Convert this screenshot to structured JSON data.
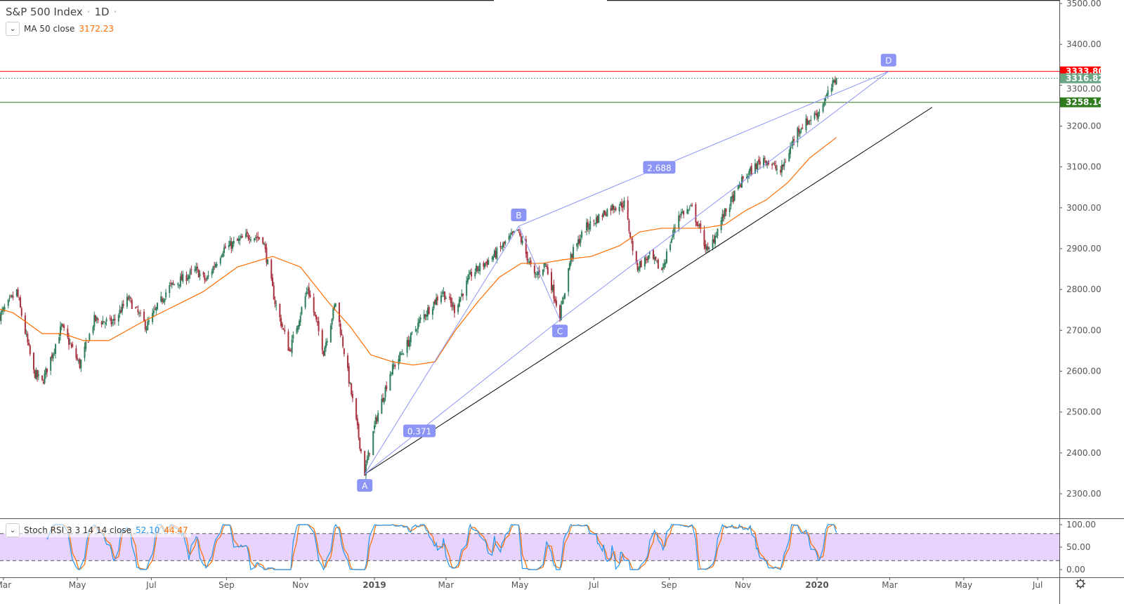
{
  "header": {
    "symbol": "S&P 500 Index",
    "interval": "1D",
    "sep": "·"
  },
  "indicators": {
    "ma": {
      "label": "MA 50 close",
      "value": "3172.23",
      "color": "#ff6d00"
    },
    "stoch": {
      "label": "Stoch RSI 3 3 14 14 close",
      "k_value": "52.10",
      "d_value": "44.47",
      "k_color": "#2196f3",
      "d_color": "#ff6d00"
    }
  },
  "chart_data": {
    "type": "candlestick",
    "title": "S&P 500 Index · 1D",
    "ylim": [
      2250,
      3500
    ],
    "y_ticks": [
      2300,
      2400,
      2500,
      2600,
      2700,
      2800,
      2900,
      3000,
      3100,
      3200,
      3300,
      3400,
      3500
    ],
    "x_ticks": [
      {
        "date": "2018-03-01",
        "label": "Mar"
      },
      {
        "date": "2018-05-01",
        "label": "May"
      },
      {
        "date": "2018-07-01",
        "label": "Jul"
      },
      {
        "date": "2018-09-01",
        "label": "Sep"
      },
      {
        "date": "2018-11-01",
        "label": "Nov"
      },
      {
        "date": "2019-01-01",
        "label": "2019",
        "bold": true
      },
      {
        "date": "2019-03-01",
        "label": "Mar"
      },
      {
        "date": "2019-05-01",
        "label": "May"
      },
      {
        "date": "2019-07-01",
        "label": "Jul"
      },
      {
        "date": "2019-09-01",
        "label": "Sep"
      },
      {
        "date": "2019-11-01",
        "label": "Nov"
      },
      {
        "date": "2020-01-01",
        "label": "2020",
        "bold": true
      },
      {
        "date": "2020-03-01",
        "label": "Mar"
      },
      {
        "date": "2020-05-01",
        "label": "May"
      },
      {
        "date": "2020-07-01",
        "label": "Jul"
      }
    ],
    "up_color": "#2e7d5b",
    "down_color": "#a8323f",
    "price_closes_approx": [
      [
        "2018-02-26",
        2735
      ],
      [
        "2018-03-12",
        2795
      ],
      [
        "2018-03-26",
        2597
      ],
      [
        "2018-04-02",
        2572
      ],
      [
        "2018-04-18",
        2709
      ],
      [
        "2018-05-03",
        2615
      ],
      [
        "2018-05-15",
        2726
      ],
      [
        "2018-05-30",
        2718
      ],
      [
        "2018-06-12",
        2778
      ],
      [
        "2018-06-27",
        2709
      ],
      [
        "2018-07-15",
        2804
      ],
      [
        "2018-08-07",
        2847
      ],
      [
        "2018-08-15",
        2821
      ],
      [
        "2018-08-29",
        2898
      ],
      [
        "2018-09-20",
        2933
      ],
      [
        "2018-10-01",
        2924
      ],
      [
        "2018-10-11",
        2769
      ],
      [
        "2018-10-23",
        2649
      ],
      [
        "2018-11-07",
        2804
      ],
      [
        "2018-11-20",
        2649
      ],
      [
        "2018-11-30",
        2769
      ],
      [
        "2018-12-07",
        2649
      ],
      [
        "2018-12-24",
        2352
      ],
      [
        "2019-01-02",
        2477
      ],
      [
        "2019-01-14",
        2597
      ],
      [
        "2019-01-28",
        2666
      ],
      [
        "2019-02-08",
        2726
      ],
      [
        "2019-02-26",
        2795
      ],
      [
        "2019-03-08",
        2752
      ],
      [
        "2019-03-22",
        2838
      ],
      [
        "2019-04-09",
        2881
      ],
      [
        "2019-04-29",
        2945
      ],
      [
        "2019-05-13",
        2830
      ],
      [
        "2019-05-22",
        2864
      ],
      [
        "2019-06-03",
        2735
      ],
      [
        "2019-06-12",
        2881
      ],
      [
        "2019-06-24",
        2950
      ],
      [
        "2019-07-15",
        3001
      ],
      [
        "2019-07-26",
        3010
      ],
      [
        "2019-08-05",
        2855
      ],
      [
        "2019-08-16",
        2881
      ],
      [
        "2019-08-26",
        2847
      ],
      [
        "2019-09-09",
        2984
      ],
      [
        "2019-09-20",
        2998
      ],
      [
        "2019-10-03",
        2890
      ],
      [
        "2019-10-15",
        2976
      ],
      [
        "2019-11-01",
        3070
      ],
      [
        "2019-11-18",
        3122
      ],
      [
        "2019-12-02",
        3087
      ],
      [
        "2019-12-16",
        3191
      ],
      [
        "2020-01-02",
        3234
      ],
      [
        "2020-01-17",
        3316.82
      ]
    ],
    "ma50_approx": [
      [
        "2018-02-26",
        2752
      ],
      [
        "2018-03-09",
        2743
      ],
      [
        "2018-04-02",
        2692
      ],
      [
        "2018-04-19",
        2692
      ],
      [
        "2018-05-06",
        2675
      ],
      [
        "2018-05-27",
        2675
      ],
      [
        "2018-06-22",
        2718
      ],
      [
        "2018-07-15",
        2752
      ],
      [
        "2018-08-13",
        2795
      ],
      [
        "2018-09-10",
        2855
      ],
      [
        "2018-10-09",
        2881
      ],
      [
        "2018-11-01",
        2855
      ],
      [
        "2018-11-24",
        2769
      ],
      [
        "2018-12-12",
        2709
      ],
      [
        "2018-12-29",
        2640
      ],
      [
        "2019-01-16",
        2623
      ],
      [
        "2019-02-02",
        2615
      ],
      [
        "2019-02-20",
        2623
      ],
      [
        "2019-03-09",
        2701
      ],
      [
        "2019-03-27",
        2769
      ],
      [
        "2019-04-14",
        2830
      ],
      [
        "2019-05-02",
        2864
      ],
      [
        "2019-05-19",
        2864
      ],
      [
        "2019-06-06",
        2873
      ],
      [
        "2019-06-29",
        2881
      ],
      [
        "2019-07-22",
        2907
      ],
      [
        "2019-08-08",
        2941
      ],
      [
        "2019-08-26",
        2950
      ],
      [
        "2019-09-12",
        2950
      ],
      [
        "2019-09-29",
        2950
      ],
      [
        "2019-10-17",
        2959
      ],
      [
        "2019-11-03",
        2993
      ],
      [
        "2019-11-20",
        3019
      ],
      [
        "2019-12-08",
        3062
      ],
      [
        "2019-12-26",
        3122
      ],
      [
        "2020-01-17",
        3172.23
      ]
    ],
    "horizontal_lines": [
      {
        "price": 3333.8,
        "label": "3333.80",
        "color": "#ff0000",
        "style": "solid"
      },
      {
        "price": 3316.82,
        "label": "3316.82",
        "color": "#6aa584",
        "style": "dotted"
      },
      {
        "price": 3258.14,
        "label": "3258.14",
        "color": "#2f7a1f",
        "style": "solid"
      }
    ],
    "pattern": {
      "color": "#8c95f5",
      "points": [
        {
          "label": "A",
          "date": "2018-12-24",
          "price": 2348
        },
        {
          "label": "B",
          "date": "2019-04-30",
          "price": 2955
        },
        {
          "label": "C",
          "date": "2019-06-03",
          "price": 2726
        },
        {
          "label": "D",
          "date": "2020-02-29",
          "price": 3333.8
        }
      ],
      "ratios": [
        {
          "label": "0.371",
          "from": "A",
          "to": "C"
        },
        {
          "label": "2.688",
          "from": "B",
          "to": "D"
        }
      ]
    },
    "trendline": {
      "from": {
        "date": "2018-12-24",
        "price": 2348
      },
      "to": {
        "date": "2020-04-05",
        "price": 3246
      },
      "color": "#000000"
    },
    "stoch_pane": {
      "y_ticks": [
        "100.00",
        "50.00",
        "0.00"
      ],
      "band": [
        20,
        80
      ],
      "band_color": "#e1c8fb"
    }
  }
}
